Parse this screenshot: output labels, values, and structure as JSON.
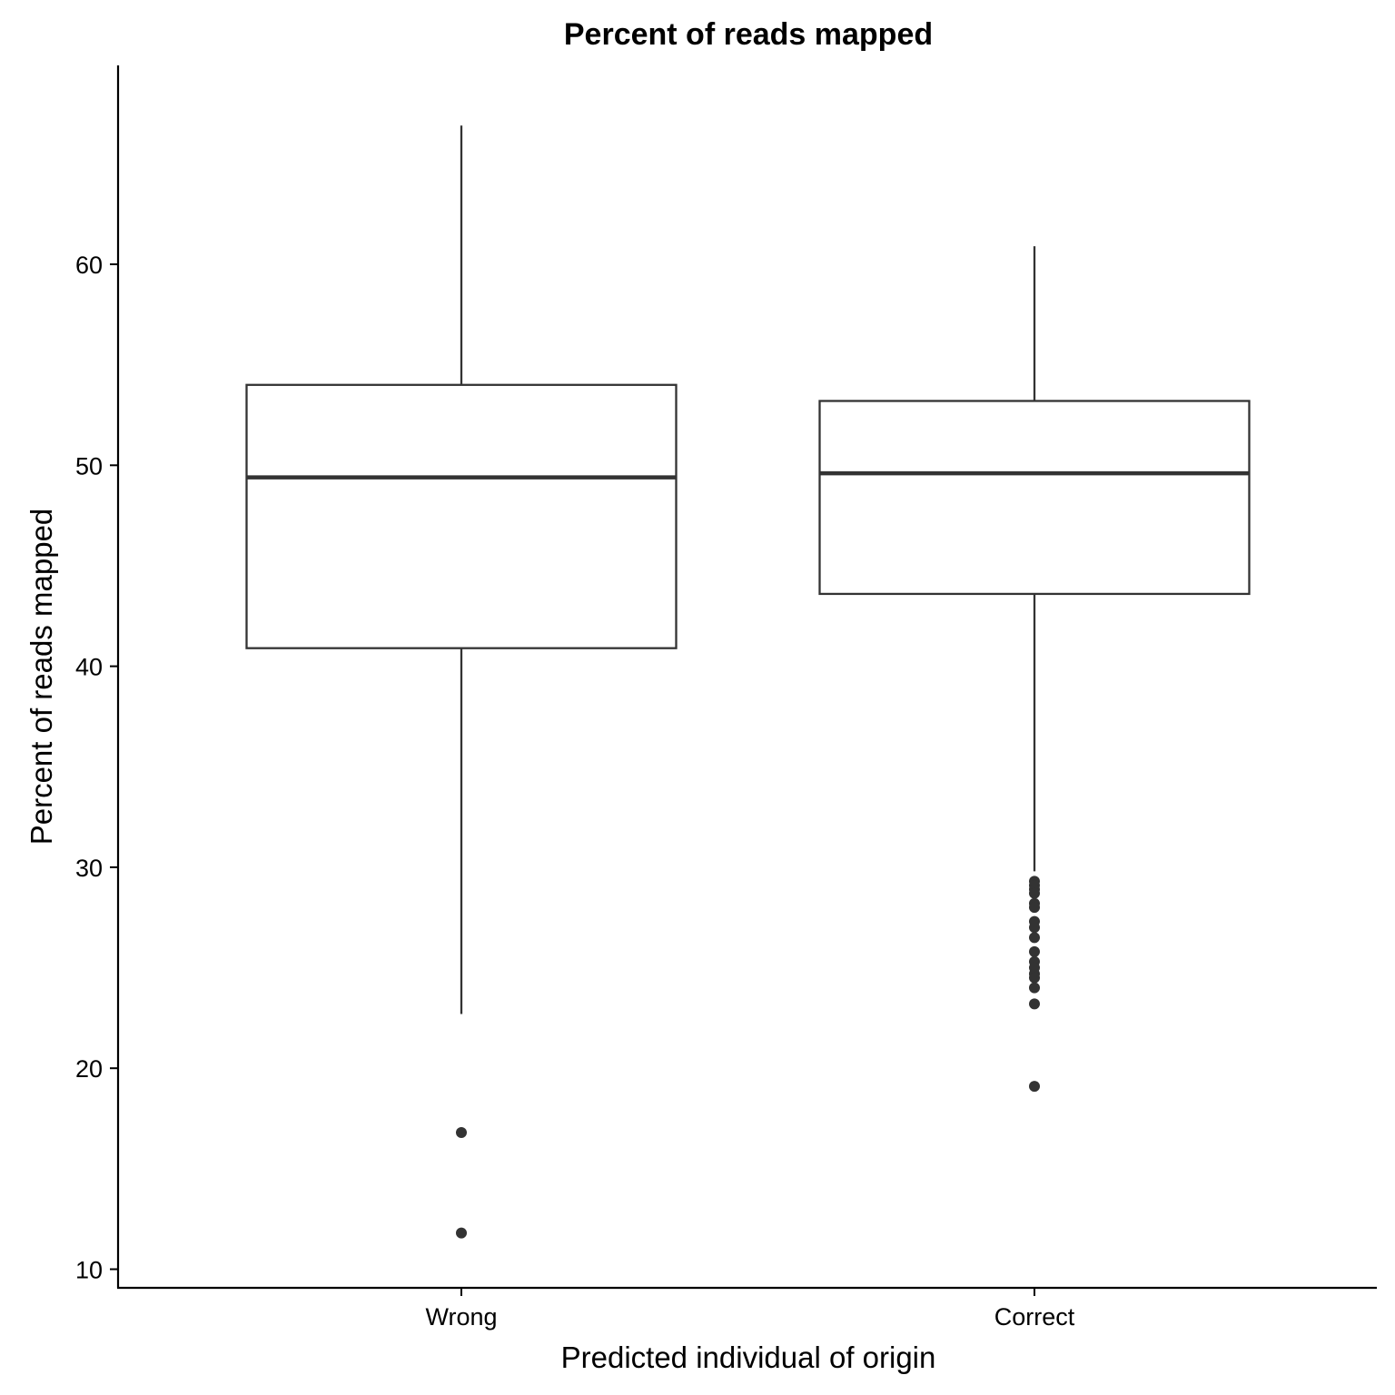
{
  "chart_data": {
    "type": "boxplot",
    "title": "Percent of reads mapped",
    "xlabel": "Predicted individual of origin",
    "ylabel": "Percent of reads mapped",
    "ylim": [
      9,
      68.5
    ],
    "yticks": [
      10,
      20,
      30,
      40,
      50,
      60
    ],
    "grid": false,
    "categories": [
      "Wrong",
      "Correct"
    ],
    "boxes": [
      {
        "category": "Wrong",
        "whisker_low": 22.7,
        "q1": 40.9,
        "median": 49.4,
        "q3": 54.0,
        "whisker_high": 66.9,
        "outliers": [
          16.8,
          11.8
        ]
      },
      {
        "category": "Correct",
        "whisker_low": 29.8,
        "q1": 43.6,
        "median": 49.6,
        "q3": 53.2,
        "whisker_high": 60.9,
        "outliers": [
          29.3,
          29.1,
          28.9,
          28.7,
          28.2,
          28.0,
          27.3,
          27.0,
          26.5,
          25.8,
          25.3,
          25.0,
          24.7,
          24.5,
          24.0,
          23.2,
          19.1
        ]
      }
    ]
  }
}
